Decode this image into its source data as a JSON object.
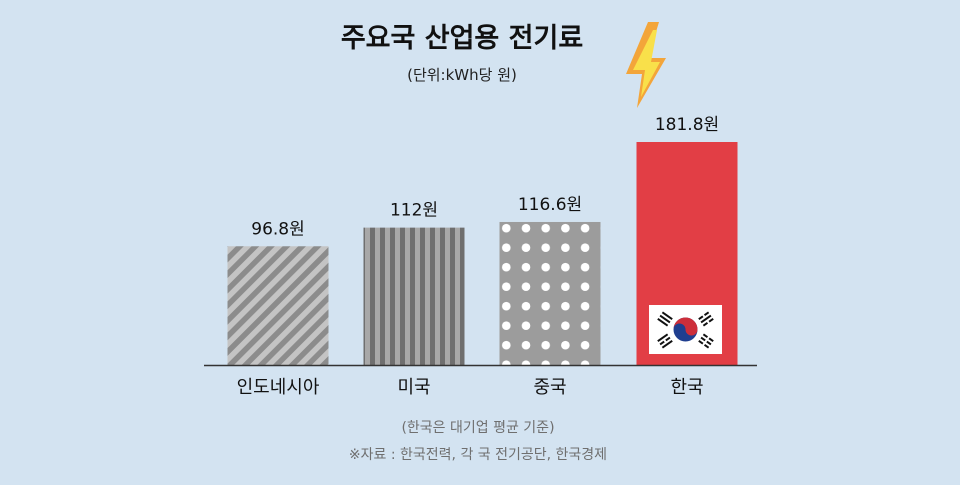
{
  "chart_data": {
    "type": "bar",
    "title": "주요국 산업용 전기료",
    "subtitle": "(단위:kWh당 원)",
    "categories": [
      "인도네시아",
      "미국",
      "중국",
      "한국"
    ],
    "values": [
      96.8,
      112,
      116.6,
      181.8
    ],
    "value_labels": [
      "96.8원",
      "112원",
      "116.6원",
      "181.8원"
    ],
    "ylim": [
      0,
      181.8
    ],
    "grid": false,
    "bar_fills": [
      "diagonal-stripes",
      "vertical-stripes",
      "dots",
      "solid"
    ],
    "colors": {
      "background": "#d3e3f1",
      "gray_bar": "#9a9a9a",
      "stripe": "#c4c4c4",
      "dark_stripe": "#6f6f6f",
      "highlight": "#e23e45",
      "axis": "#333333",
      "lightning_outer": "#f3a53a",
      "lightning_inner": "#f9e04a"
    },
    "icons": [
      "lightning-bolt-icon",
      "korean-flag-icon"
    ]
  },
  "footnotes": {
    "basis": "(한국은 대기업 평균 기준)",
    "source": "※자료 : 한국전력, 각 국 전기공단, 한국경제"
  }
}
